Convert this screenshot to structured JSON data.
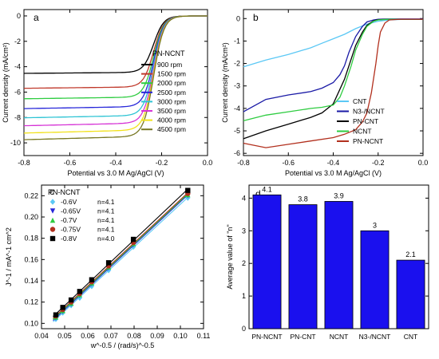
{
  "chart_data": [
    {
      "panel": "a",
      "type": "line",
      "xlabel": "Potential vs 3.0 M Ag/AgCl (V)",
      "ylabel": "Current density (mA/cm²)",
      "xlim": [
        -0.8,
        0.0
      ],
      "ylim": [
        -11,
        0.5
      ],
      "xticks": [
        -0.8,
        -0.6,
        -0.4,
        -0.2,
        0.0
      ],
      "yticks": [
        0,
        -2,
        -4,
        -6,
        -8,
        -10
      ],
      "legend": {
        "title": "PN-NCNT",
        "placement": "middle-right"
      },
      "series": [
        {
          "name": "900  rpm",
          "color": "#000000",
          "limit": -4.45
        },
        {
          "name": "1500 rpm",
          "color": "#c0392b",
          "limit": -5.6
        },
        {
          "name": "2000 rpm",
          "color": "#2ecc40",
          "limit": -6.4
        },
        {
          "name": "2500 rpm",
          "color": "#2626d9",
          "limit": -7.15
        },
        {
          "name": "3000 rpm",
          "color": "#2ec4d4",
          "limit": -7.85
        },
        {
          "name": "3500 rpm",
          "color": "#d633d6",
          "limit": -8.45
        },
        {
          "name": "4000 rpm",
          "color": "#f1e11a",
          "limit": -9.0
        },
        {
          "name": "4500 rpm",
          "color": "#777722",
          "limit": -9.5
        }
      ]
    },
    {
      "panel": "b",
      "type": "line",
      "xlabel": "Potential vs 3.0 M Ag/AgCl (V)",
      "ylabel": "Current density (mA/cm²)",
      "xlim": [
        -0.8,
        0.0
      ],
      "ylim": [
        -6.1,
        0.4
      ],
      "xticks": [
        -0.8,
        -0.6,
        -0.4,
        -0.2,
        0.0
      ],
      "yticks": [
        0,
        -1,
        -2,
        -3,
        -4,
        -5,
        -6
      ],
      "legend": {
        "placement": "bottom-right"
      },
      "series": [
        {
          "name": "CNT",
          "color": "#5bc8f5",
          "x": [
            -0.8,
            -0.7,
            -0.6,
            -0.5,
            -0.45,
            -0.4,
            -0.35,
            -0.3,
            -0.25,
            -0.2,
            -0.15,
            -0.1,
            0.0
          ],
          "y": [
            -2.15,
            -1.85,
            -1.6,
            -1.3,
            -1.1,
            -0.9,
            -0.7,
            -0.45,
            -0.25,
            -0.12,
            -0.06,
            -0.04,
            -0.04
          ]
        },
        {
          "name": "N3-/NCNT",
          "color": "#1a1aa6",
          "x": [
            -0.8,
            -0.7,
            -0.6,
            -0.5,
            -0.45,
            -0.4,
            -0.37,
            -0.35,
            -0.33,
            -0.3,
            -0.27,
            -0.25,
            -0.22,
            -0.2,
            -0.15,
            -0.1,
            0.0
          ],
          "y": [
            -4.15,
            -3.6,
            -3.4,
            -3.25,
            -3.1,
            -2.85,
            -2.5,
            -2.1,
            -1.5,
            -0.8,
            -0.35,
            -0.15,
            -0.06,
            -0.03,
            -0.02,
            -0.02,
            -0.02
          ]
        },
        {
          "name": "PN-CNT",
          "color": "#000000",
          "x": [
            -0.8,
            -0.7,
            -0.6,
            -0.5,
            -0.45,
            -0.4,
            -0.35,
            -0.3,
            -0.27,
            -0.25,
            -0.22,
            -0.2,
            -0.15,
            -0.1,
            0.0
          ],
          "y": [
            -5.35,
            -5.0,
            -4.7,
            -4.4,
            -4.2,
            -3.8,
            -2.7,
            -1.2,
            -0.6,
            -0.3,
            -0.1,
            -0.05,
            -0.03,
            -0.03,
            -0.03
          ]
        },
        {
          "name": "NCNT",
          "color": "#2ecc40",
          "x": [
            -0.8,
            -0.7,
            -0.6,
            -0.5,
            -0.45,
            -0.4,
            -0.37,
            -0.35,
            -0.32,
            -0.3,
            -0.27,
            -0.25,
            -0.22,
            -0.2,
            -0.15,
            -0.1,
            0.0
          ],
          "y": [
            -4.55,
            -4.3,
            -4.15,
            -4.0,
            -3.95,
            -3.85,
            -3.5,
            -3.0,
            -2.1,
            -1.4,
            -0.7,
            -0.35,
            -0.12,
            -0.06,
            -0.03,
            -0.03,
            -0.03
          ]
        },
        {
          "name": "PN-NCNT",
          "color": "#b2301e",
          "x": [
            -0.8,
            -0.7,
            -0.6,
            -0.5,
            -0.4,
            -0.35,
            -0.3,
            -0.27,
            -0.25,
            -0.23,
            -0.21,
            -0.2,
            -0.19,
            -0.17,
            -0.15,
            -0.1,
            0.0
          ],
          "y": [
            -5.55,
            -5.75,
            -5.6,
            -5.45,
            -5.3,
            -5.15,
            -4.95,
            -4.6,
            -4.2,
            -3.3,
            -2.0,
            -1.2,
            -0.6,
            -0.2,
            -0.06,
            -0.03,
            -0.03
          ]
        }
      ]
    },
    {
      "panel": "c",
      "type": "scatter",
      "xlabel": "w^-0.5 / (rad/s)^-0.5",
      "ylabel": "J^-1 / mA^-1 cm^2",
      "xlim": [
        0.04,
        0.11
      ],
      "ylim": [
        0.095,
        0.23
      ],
      "xticks": [
        0.04,
        0.05,
        0.06,
        0.07,
        0.08,
        0.09,
        0.1,
        0.11
      ],
      "yticks": [
        0.1,
        0.12,
        0.14,
        0.16,
        0.18,
        0.2,
        0.22
      ],
      "legend": {
        "title": "PN-NCNT",
        "placement": "top-left"
      },
      "x": [
        0.0462,
        0.0492,
        0.0528,
        0.0565,
        0.0617,
        0.069,
        0.0797,
        0.1032
      ],
      "series": [
        {
          "name": "-0.6V",
          "n_label": "n=4.1",
          "color": "#5bc8f5",
          "marker": "diamond",
          "y": [
            0.104,
            0.11,
            0.117,
            0.124,
            0.135,
            0.15,
            0.172,
            0.218
          ]
        },
        {
          "name": "-0.65V",
          "n_label": "n=4.1",
          "color": "#2626d9",
          "marker": "triangle-down",
          "y": [
            0.105,
            0.111,
            0.118,
            0.126,
            0.137,
            0.152,
            0.174,
            0.22
          ]
        },
        {
          "name": "-0.7V",
          "n_label": "n=4.1",
          "color": "#2ecc40",
          "marker": "triangle-up",
          "y": [
            0.106,
            0.112,
            0.119,
            0.127,
            0.138,
            0.153,
            0.175,
            0.221
          ]
        },
        {
          "name": "-0.75V",
          "n_label": "n=4.1",
          "color": "#b2301e",
          "marker": "circle",
          "y": [
            0.107,
            0.113,
            0.12,
            0.128,
            0.139,
            0.154,
            0.176,
            0.222
          ]
        },
        {
          "name": "-0.8V",
          "n_label": "n=4.0",
          "color": "#000000",
          "marker": "square",
          "y": [
            0.108,
            0.115,
            0.122,
            0.13,
            0.141,
            0.157,
            0.179,
            0.225
          ]
        }
      ]
    },
    {
      "panel": "d",
      "type": "bar",
      "ylabel": "Average value of \"n\"",
      "ylim": [
        0,
        4.4
      ],
      "yticks": [
        0,
        1,
        2,
        3,
        4
      ],
      "bar_color": "#1a10ee",
      "categories": [
        "PN-NCNT",
        "PN-CNT",
        "NCNT",
        "N3-/NCNT",
        "CNT"
      ],
      "values": [
        4.1,
        3.8,
        3.9,
        3.0,
        2.1
      ],
      "value_labels": [
        "4.1",
        "3.8",
        "3.9",
        "3",
        "2.1"
      ]
    }
  ]
}
